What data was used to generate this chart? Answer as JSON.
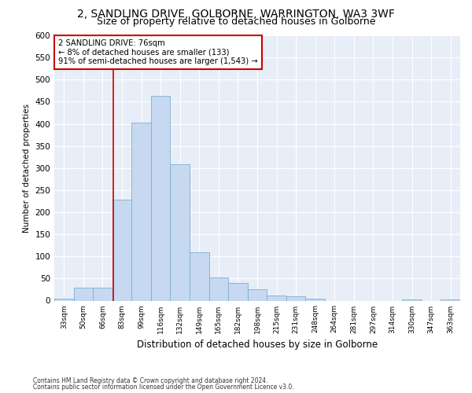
{
  "title": "2, SANDLING DRIVE, GOLBORNE, WARRINGTON, WA3 3WF",
  "subtitle": "Size of property relative to detached houses in Golborne",
  "xlabel": "Distribution of detached houses by size in Golborne",
  "ylabel": "Number of detached properties",
  "bar_labels": [
    "33sqm",
    "50sqm",
    "66sqm",
    "83sqm",
    "99sqm",
    "116sqm",
    "132sqm",
    "149sqm",
    "165sqm",
    "182sqm",
    "198sqm",
    "215sqm",
    "231sqm",
    "248sqm",
    "264sqm",
    "281sqm",
    "297sqm",
    "314sqm",
    "330sqm",
    "347sqm",
    "363sqm"
  ],
  "bar_values": [
    5,
    30,
    30,
    228,
    403,
    463,
    308,
    110,
    53,
    40,
    26,
    12,
    10,
    4,
    0,
    0,
    0,
    0,
    2,
    0,
    2
  ],
  "bar_color": "#c6d9f0",
  "bar_edge_color": "#7bafd4",
  "property_line_x": 2.57,
  "annotation_line1": "2 SANDLING DRIVE: 76sqm",
  "annotation_line2": "← 8% of detached houses are smaller (133)",
  "annotation_line3": "91% of semi-detached houses are larger (1,543) →",
  "annotation_box_color": "#ffffff",
  "annotation_box_edge_color": "#cc0000",
  "line_color": "#cc0000",
  "ylim": [
    0,
    600
  ],
  "yticks": [
    0,
    50,
    100,
    150,
    200,
    250,
    300,
    350,
    400,
    450,
    500,
    550,
    600
  ],
  "footnote1": "Contains HM Land Registry data © Crown copyright and database right 2024.",
  "footnote2": "Contains public sector information licensed under the Open Government Licence v3.0.",
  "bg_color": "#ffffff",
  "plot_bg_color": "#e8eef7",
  "grid_color": "#ffffff",
  "title_fontsize": 10,
  "subtitle_fontsize": 9
}
